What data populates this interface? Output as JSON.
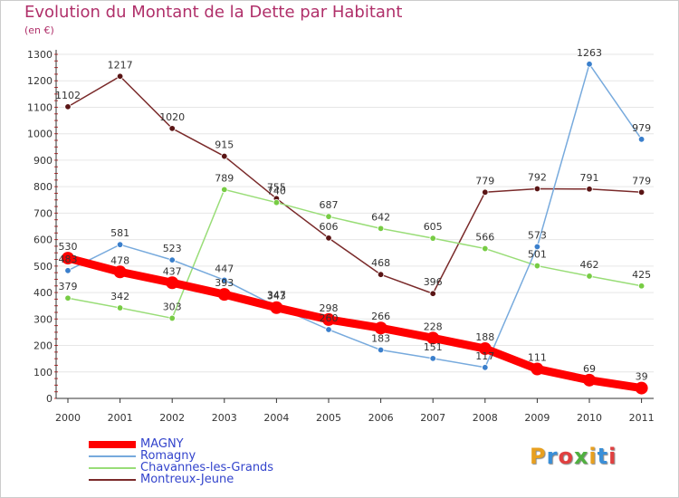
{
  "header": {
    "title": "Evolution du Montant de la Dette par Habitant",
    "subtitle": "(en €)"
  },
  "logo": {
    "text": "Proxiti",
    "colors": [
      "#e8a020",
      "#3a8fd8",
      "#e04040",
      "#50b040",
      "#e8a020",
      "#3a8fd8",
      "#e04040"
    ]
  },
  "chart_data": {
    "type": "line",
    "title": "Evolution du Montant de la Dette par Habitant",
    "subtitle": "(en €)",
    "xlabel": "",
    "ylabel": "",
    "ylim": [
      0,
      1300
    ],
    "yticks": [
      0,
      100,
      200,
      300,
      400,
      500,
      600,
      700,
      800,
      900,
      1000,
      1100,
      1200,
      1300
    ],
    "x": [
      "2000",
      "2001",
      "2002",
      "2003",
      "2004",
      "2005",
      "2006",
      "2007",
      "2008",
      "2009",
      "2010",
      "2011"
    ],
    "grid": "horizontal",
    "legend": "bottom-left",
    "series": [
      {
        "name": "Montreux-Jeune",
        "color": "#7a2a2a",
        "marker": "#5a1515",
        "values": [
          1102,
          1217,
          1020,
          915,
          755,
          606,
          468,
          396,
          779,
          792,
          791,
          779
        ],
        "labels": [
          "1102",
          "1217",
          "1020",
          "915",
          "755",
          "606",
          "468",
          "396",
          "779",
          "792",
          "791",
          "779"
        ]
      },
      {
        "name": "Chavannes-les-Grands",
        "color": "#99dd77",
        "marker": "#77cc44",
        "values": [
          379,
          342,
          303,
          789,
          740,
          687,
          642,
          605,
          566,
          501,
          462,
          425
        ],
        "labels": [
          "379",
          "342",
          "303",
          "789",
          "740",
          "687",
          "642",
          "605",
          "566",
          "501",
          "462",
          "425"
        ]
      },
      {
        "name": "Romagny",
        "color": "#77aadd",
        "marker": "#3a7fcc",
        "values": [
          483,
          581,
          523,
          447,
          347,
          260,
          183,
          151,
          117,
          573,
          1263,
          979
        ],
        "labels": [
          "483",
          "581",
          "523",
          "447",
          "347",
          "260",
          "183",
          "151",
          "117",
          "573",
          "1263",
          "979"
        ]
      },
      {
        "name": "MAGNY",
        "color": "#ff0000",
        "marker": "#ff0000",
        "values": [
          530,
          478,
          437,
          393,
          343,
          298,
          266,
          228,
          188,
          111,
          69,
          39
        ],
        "labels": [
          "530",
          "478",
          "437",
          "393",
          "343",
          "298",
          "266",
          "228",
          "188",
          "111",
          "69",
          "39"
        ]
      }
    ],
    "legend_order": [
      "MAGNY",
      "Romagny",
      "Chavannes-les-Grands",
      "Montreux-Jeune"
    ]
  }
}
